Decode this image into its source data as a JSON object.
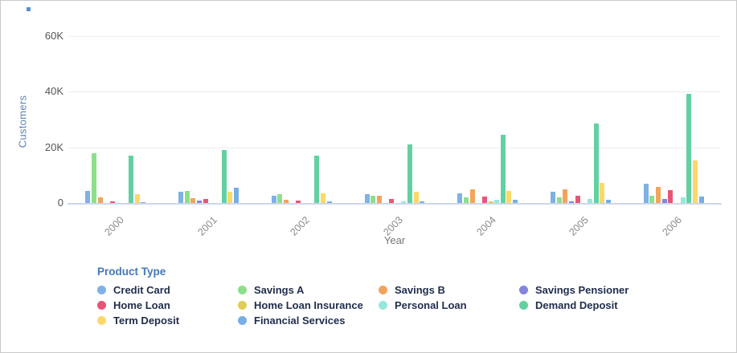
{
  "icons": {
    "corner_mark": "blue-square"
  },
  "chart_data": {
    "type": "bar",
    "title": "",
    "xlabel": "Year",
    "ylabel": "Customers",
    "legend_title": "Product Type",
    "legend_position": "bottom",
    "grid": true,
    "ylim": [
      0,
      60000
    ],
    "yticks": [
      {
        "value": 0,
        "label": "0"
      },
      {
        "value": 20000,
        "label": "20K"
      },
      {
        "value": 40000,
        "label": "40K"
      },
      {
        "value": 60000,
        "label": "60K"
      }
    ],
    "categories": [
      "2000",
      "2001",
      "2002",
      "2003",
      "2004",
      "2005",
      "2006"
    ],
    "series": [
      {
        "name": "Credit Card",
        "color": "#7FB1E3",
        "values": [
          4300,
          4000,
          2600,
          3200,
          3500,
          4000,
          7000
        ]
      },
      {
        "name": "Savings A",
        "color": "#8CE08A",
        "values": [
          18000,
          4400,
          3200,
          2600,
          2000,
          2000,
          2600
        ]
      },
      {
        "name": "Savings B",
        "color": "#F2A45B",
        "values": [
          2000,
          1700,
          1200,
          2600,
          4900,
          4900,
          5900
        ]
      },
      {
        "name": "Savings Pensioner",
        "color": "#8583DB",
        "values": [
          0,
          900,
          0,
          0,
          0,
          600,
          1300
        ]
      },
      {
        "name": "Home Loan",
        "color": "#EA5476",
        "values": [
          600,
          1400,
          900,
          1400,
          2200,
          2600,
          4600
        ]
      },
      {
        "name": "Home Loan Insurance",
        "color": "#DFCE55",
        "values": [
          0,
          0,
          0,
          0,
          700,
          0,
          0
        ]
      },
      {
        "name": "Personal Loan",
        "color": "#97E7DA",
        "values": [
          0,
          0,
          0,
          600,
          1200,
          1400,
          2000
        ]
      },
      {
        "name": "Demand Deposit",
        "color": "#63D0A1",
        "values": [
          17000,
          19000,
          17000,
          21000,
          24500,
          28500,
          39300
        ]
      },
      {
        "name": "Term Deposit",
        "color": "#FBD869",
        "values": [
          3300,
          3900,
          3500,
          4000,
          4300,
          7300,
          15300
        ]
      },
      {
        "name": "Financial Services",
        "color": "#77AEE6",
        "values": [
          200,
          5600,
          500,
          600,
          1100,
          1200,
          2200
        ]
      }
    ]
  }
}
